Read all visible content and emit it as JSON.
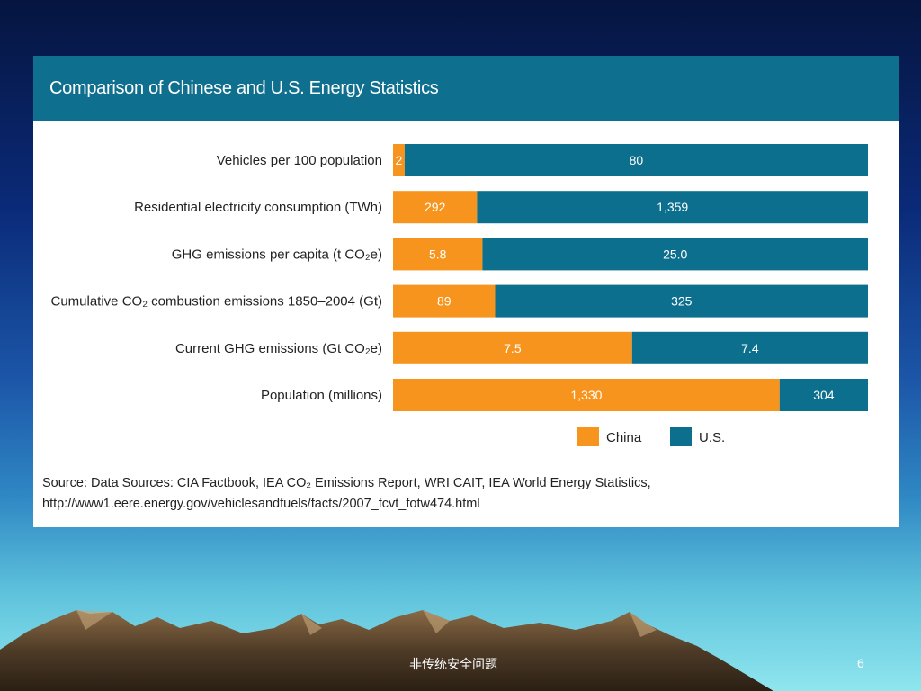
{
  "chart_data": {
    "type": "bar",
    "stacking": "percent",
    "orientation": "horizontal",
    "title": "Comparison of Chinese and U.S. Energy Statistics",
    "categories": [
      "Vehicles per 100 population",
      "Residential electricity consumption (TWh)",
      "GHG emissions per capita (t CO₂e)",
      "Cumulative CO₂ combustion emissions 1850–2004 (Gt)",
      "Current GHG emissions (Gt CO₂e)",
      "Population (millions)"
    ],
    "series": [
      {
        "name": "China",
        "color": "#f7941d",
        "values": [
          2,
          292,
          5.8,
          89,
          7.5,
          1330
        ],
        "labels": [
          "2",
          "292",
          "5.8",
          "89",
          "7.5",
          "1,330"
        ]
      },
      {
        "name": "U.S.",
        "color": "#0d6f8e",
        "values": [
          80,
          1359,
          25.0,
          325,
          7.4,
          304
        ],
        "labels": [
          "80",
          "1,359",
          "25.0",
          "325",
          "7.4",
          "304"
        ]
      }
    ],
    "legend_position": "bottom-right",
    "grid": false,
    "source_note": "Source: Data Sources: CIA Factbook, IEA CO₂ Emissions Report, WRI CAIT, IEA World Energy Statistics, http://www1.eere.energy.gov/vehiclesandfuels/facts/2007_fcvt_fotw474.html"
  },
  "slide": {
    "footer_text": "非传统安全问题",
    "page_number": "6"
  }
}
